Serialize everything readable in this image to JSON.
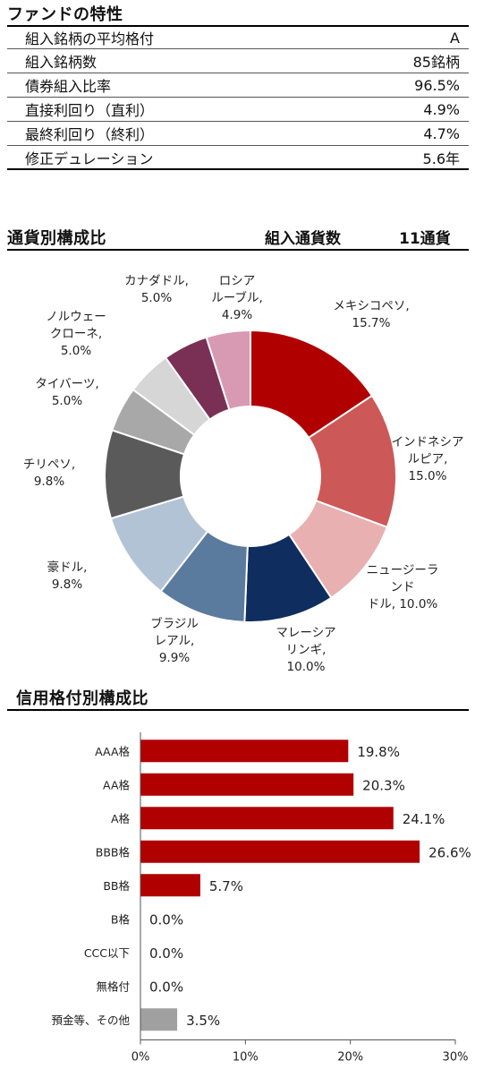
{
  "characteristics": {
    "title": "ファンドの特性",
    "rows": [
      {
        "label": "組入銘柄の平均格付",
        "value": "A"
      },
      {
        "label": "組入銘柄数",
        "value": "85銘柄"
      },
      {
        "label": "債券組入比率",
        "value": "96.5%"
      },
      {
        "label": "直接利回り（直利）",
        "value": "4.9%"
      },
      {
        "label": "最終利回り（終利）",
        "value": "4.7%"
      },
      {
        "label": "修正デュレーション",
        "value": "5.6年"
      }
    ]
  },
  "currency": {
    "title": "通貨別構成比",
    "count_label": "組入通貨数",
    "count_value": "11通貨"
  },
  "rating": {
    "title": "信用格付別構成比"
  },
  "chart_data": [
    {
      "type": "pie",
      "title": "通貨別構成比",
      "categories": [
        "メキシコペソ",
        "インドネシアルピア",
        "ニュージーランドドル",
        "マレーシアリンギ",
        "ブラジルレアル",
        "豪ドル",
        "チリペソ",
        "タイバーツ",
        "ノルウェークローネ",
        "カナダドル",
        "ロシアルーブル"
      ],
      "labels": [
        "メキシコペソ,\n15.7%",
        "インドネシア\nルピア,\n15.0%",
        "ニュージーラ\nンド\nドル, 10.0%",
        "マレーシア\nリンギ,\n10.0%",
        "ブラジル\nレアル,\n9.9%",
        "豪ドル,\n9.8%",
        "チリペソ,\n9.8%",
        "タイバーツ,\n5.0%",
        "ノルウェー\nクローネ,\n5.0%",
        "カナダドル,\n5.0%",
        "ロシア\nルーブル,\n4.9%"
      ],
      "values": [
        15.7,
        15.0,
        10.0,
        10.0,
        9.9,
        9.8,
        9.8,
        5.0,
        5.0,
        5.0,
        4.9
      ],
      "colors": [
        "#b00000",
        "#cd5858",
        "#e8b0b0",
        "#0f2d5e",
        "#5a7a9e",
        "#b3c3d6",
        "#5a5a5a",
        "#a8a8a8",
        "#d6d6d6",
        "#7a3055",
        "#d89ab3"
      ]
    },
    {
      "type": "bar",
      "orientation": "horizontal",
      "title": "信用格付別構成比",
      "categories": [
        "AAA格",
        "AA格",
        "A格",
        "BBB格",
        "BB格",
        "B格",
        "CCC以下",
        "無格付",
        "預金等、その他"
      ],
      "values": [
        19.8,
        20.3,
        24.1,
        26.6,
        5.7,
        0.0,
        0.0,
        0.0,
        3.5
      ],
      "value_labels": [
        "19.8%",
        "20.3%",
        "24.1%",
        "26.6%",
        "5.7%",
        "0.0%",
        "0.0%",
        "0.0%",
        "3.5%"
      ],
      "bar_colors": [
        "#b00000",
        "#b00000",
        "#b00000",
        "#b00000",
        "#b00000",
        "#b00000",
        "#b00000",
        "#b00000",
        "#a0a0a0"
      ],
      "xlim": [
        0,
        30
      ],
      "xticks": [
        "0%",
        "10%",
        "20%",
        "30%"
      ],
      "grid": false
    }
  ]
}
